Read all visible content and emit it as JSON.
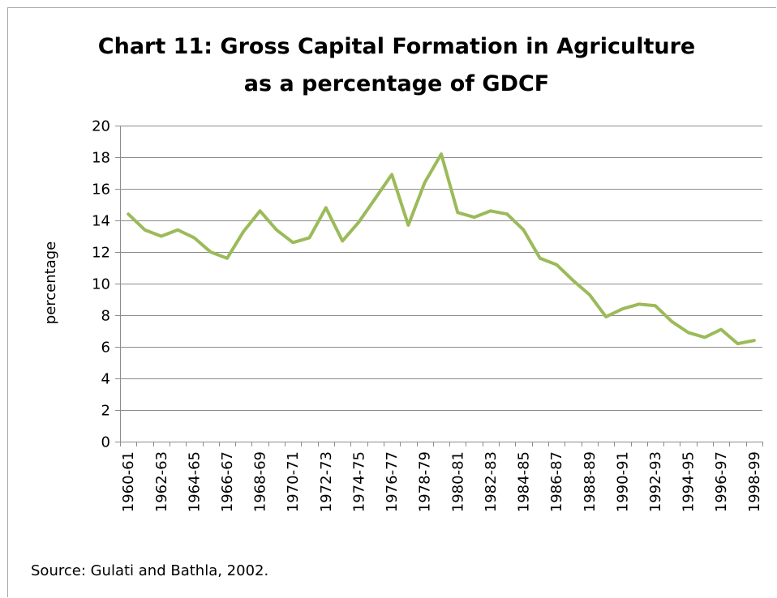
{
  "chart_data": {
    "type": "line",
    "title_lines": [
      "Chart 11: Gross Capital Formation in Agriculture",
      "as a percentage of GDCF"
    ],
    "ylabel": "percentage",
    "ylim": [
      0,
      20
    ],
    "yticks": [
      0,
      2,
      4,
      6,
      8,
      10,
      12,
      14,
      16,
      18,
      20
    ],
    "grid": "horizontal",
    "line_color": "#9bbb59",
    "categories": [
      "1960-61",
      "1961-62",
      "1962-63",
      "1963-64",
      "1964-65",
      "1965-66",
      "1966-67",
      "1967-68",
      "1968-69",
      "1969-70",
      "1970-71",
      "1971-72",
      "1972-73",
      "1973-74",
      "1974-75",
      "1975-76",
      "1976-77",
      "1977-78",
      "1978-79",
      "1979-80",
      "1980-81",
      "1981-82",
      "1982-83",
      "1983-84",
      "1984-85",
      "1985-86",
      "1986-87",
      "1987-88",
      "1988-89",
      "1989-90",
      "1990-91",
      "1991-92",
      "1992-93",
      "1993-94",
      "1994-95",
      "1995-96",
      "1996-97",
      "1997-98",
      "1998-99"
    ],
    "tick_labels": [
      "1960-61",
      "1962-63",
      "1964-65",
      "1966-67",
      "1968-69",
      "1970-71",
      "1972-73",
      "1974-75",
      "1976-77",
      "1978-79",
      "1980-81",
      "1982-83",
      "1984-85",
      "1986-87",
      "1988-89",
      "1990-91",
      "1992-93",
      "1994-95",
      "1996-97",
      "1998-99"
    ],
    "values": [
      14.4,
      13.4,
      13.0,
      13.4,
      12.9,
      12.0,
      11.6,
      13.3,
      14.6,
      13.4,
      12.6,
      12.9,
      14.8,
      12.7,
      13.9,
      15.4,
      16.9,
      13.7,
      16.4,
      18.2,
      14.5,
      14.2,
      14.6,
      14.4,
      13.4,
      11.6,
      11.2,
      10.2,
      9.3,
      7.9,
      8.4,
      8.7,
      8.6,
      7.6,
      6.9,
      6.6,
      7.1,
      6.2,
      6.4
    ]
  },
  "source_note": "Source: Gulati and Bathla, 2002."
}
